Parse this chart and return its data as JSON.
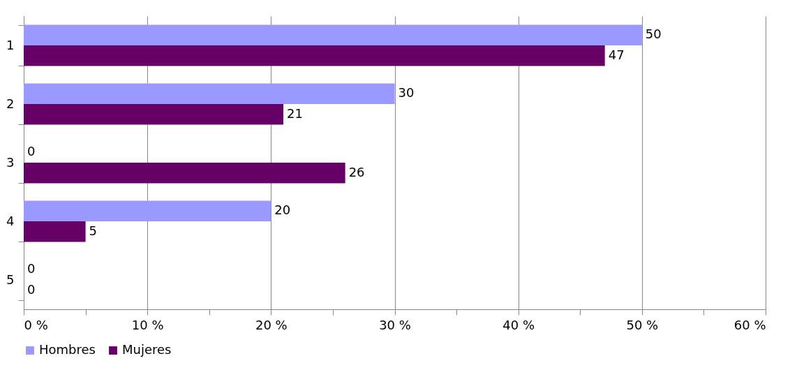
{
  "chart_data": {
    "type": "bar",
    "orientation": "horizontal",
    "categories": [
      "1",
      "2",
      "3",
      "4",
      "5"
    ],
    "series": [
      {
        "name": "Hombres",
        "color": "#9999ff",
        "values": [
          50,
          30,
          0,
          20,
          0
        ]
      },
      {
        "name": "Mujeres",
        "color": "#660066",
        "values": [
          47,
          21,
          26,
          5,
          0
        ]
      }
    ],
    "xlim": [
      0,
      60
    ],
    "xticks": [
      {
        "value": 0,
        "label": "0 %"
      },
      {
        "value": 5,
        "label": null
      },
      {
        "value": 10,
        "label": "10 %"
      },
      {
        "value": 15,
        "label": null
      },
      {
        "value": 20,
        "label": "20 %"
      },
      {
        "value": 25,
        "label": null
      },
      {
        "value": 30,
        "label": "30 %"
      },
      {
        "value": 35,
        "label": null
      },
      {
        "value": 40,
        "label": "40 %"
      },
      {
        "value": 45,
        "label": null
      },
      {
        "value": 50,
        "label": "50 %"
      },
      {
        "value": 55,
        "label": null
      },
      {
        "value": 60,
        "label": "60 %"
      }
    ],
    "grid": "x",
    "legend": "bottom",
    "data_labels": true
  }
}
